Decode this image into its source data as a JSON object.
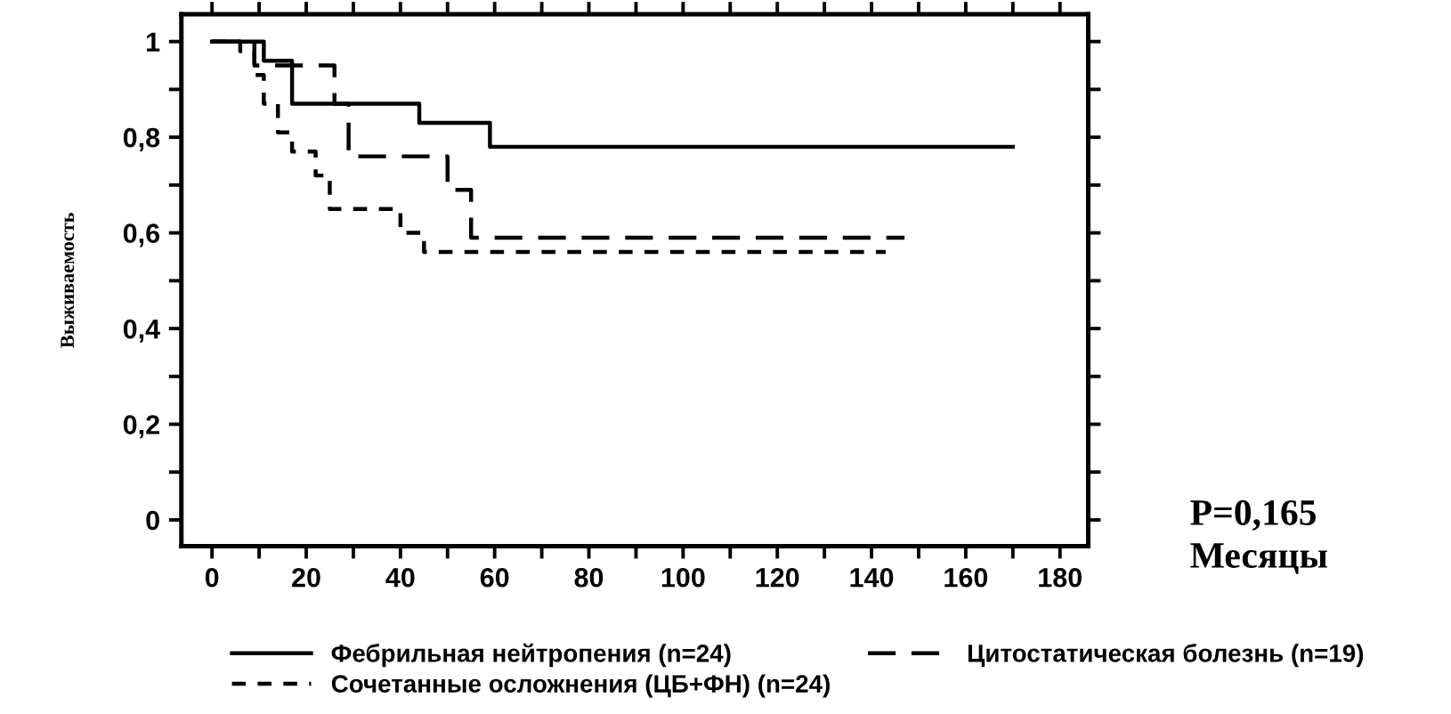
{
  "chart_data": {
    "type": "step",
    "xlabel": "Месяцы",
    "ylabel": "Выживаемость",
    "annotations": [
      "P=0,165"
    ],
    "xlim": [
      -6.5,
      186
    ],
    "ylim": [
      -0.055,
      1.057
    ],
    "xticks": [
      0,
      {
        "value": 10,
        "label": null
      },
      20,
      {
        "value": 30,
        "label": null
      },
      40,
      {
        "value": 50,
        "label": null
      },
      60,
      {
        "value": 70,
        "label": null
      },
      80,
      {
        "value": 90,
        "label": null
      },
      100,
      {
        "value": 110,
        "label": null
      },
      120,
      {
        "value": 130,
        "label": null
      },
      140,
      {
        "value": 150,
        "label": null
      },
      160,
      {
        "value": 170,
        "label": null
      },
      180
    ],
    "yticks": [
      0,
      {
        "value": 0.1,
        "label": null
      },
      {
        "value": 0.2,
        "label": "0,2"
      },
      {
        "value": 0.3,
        "label": null
      },
      {
        "value": 0.4,
        "label": "0,4"
      },
      {
        "value": 0.5,
        "label": null
      },
      {
        "value": 0.6,
        "label": "0,6"
      },
      {
        "value": 0.7,
        "label": null
      },
      {
        "value": 0.8,
        "label": "0,8"
      },
      {
        "value": 0.9,
        "label": null
      },
      1
    ],
    "grid": false,
    "legend": "bottom",
    "marker": "none",
    "series": [
      {
        "name": "Фебрильная нейтропения (n=24)",
        "color": "#000000",
        "line_style": "solid",
        "x": [
          0,
          11,
          17,
          44,
          59,
          170
        ],
        "values": [
          1.0,
          0.96,
          0.87,
          0.83,
          0.78,
          0.78
        ]
      },
      {
        "name": "Сочетанные осложнения (ЦБ+ФН) (n=24)",
        "color": "#000000",
        "line_style": "dotted",
        "x": [
          0,
          6,
          9,
          11,
          14,
          17,
          22,
          25,
          40,
          45,
          143
        ],
        "values": [
          1.0,
          0.98,
          0.93,
          0.87,
          0.81,
          0.77,
          0.72,
          0.65,
          0.6,
          0.56,
          0.56
        ]
      },
      {
        "name": "Цитостатическая болезнь (n=19)",
        "color": "#000000",
        "line_style": "dashed",
        "x": [
          0,
          9,
          26,
          29,
          50,
          55,
          147
        ],
        "values": [
          1.0,
          0.95,
          0.87,
          0.76,
          0.69,
          0.59,
          0.59
        ]
      }
    ]
  }
}
